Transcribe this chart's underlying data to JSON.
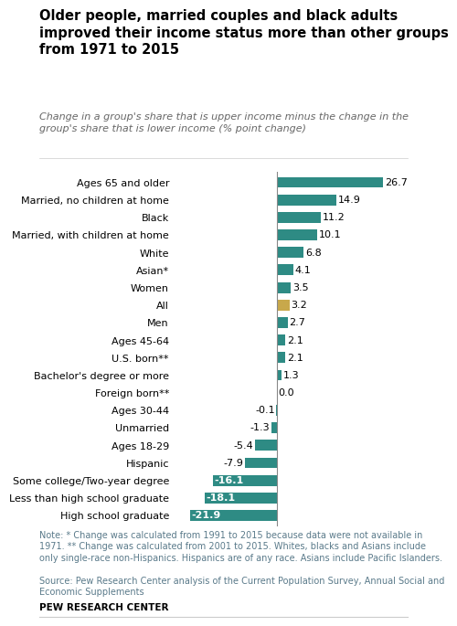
{
  "title": "Older people, married couples and black adults\nimproved their income status more than other groups\nfrom 1971 to 2015",
  "subtitle": "Change in a group's share that is upper income minus the change in the\ngroup's share that is lower income (% point change)",
  "categories": [
    "Ages 65 and older",
    "Married, no children at home",
    "Black",
    "Married, with children at home",
    "White",
    "Asian*",
    "Women",
    "All",
    "Men",
    "Ages 45-64",
    "U.S. born**",
    "Bachelor's degree or more",
    "Foreign born**",
    "Ages 30-44",
    "Unmarried",
    "Ages 18-29",
    "Hispanic",
    "Some college/Two-year degree",
    "Less than high school graduate",
    "High school graduate"
  ],
  "values": [
    26.7,
    14.9,
    11.2,
    10.1,
    6.8,
    4.1,
    3.5,
    3.2,
    2.7,
    2.1,
    2.1,
    1.3,
    0.0,
    -0.1,
    -1.3,
    -5.4,
    -7.9,
    -16.1,
    -18.1,
    -21.9
  ],
  "bar_color_default": "#2e8b84",
  "bar_color_special": "#c8a84b",
  "special_index": 7,
  "inside_label_threshold": -10,
  "note": "Note: * Change was calculated from 1991 to 2015 because data were not available in\n1971. ** Change was calculated from 2001 to 2015. Whites, blacks and Asians include\nonly single-race non-Hispanics. Hispanics are of any race. Asians include Pacific Islanders.",
  "source": "Source: Pew Research Center analysis of the Current Population Survey, Annual Social and\nEconomic Supplements",
  "brand": "PEW RESEARCH CENTER",
  "title_fontsize": 10.5,
  "subtitle_fontsize": 8,
  "label_fontsize": 8,
  "value_fontsize": 8,
  "note_fontsize": 7,
  "note_color": "#5a7a8a",
  "source_color": "#5a7a8a"
}
